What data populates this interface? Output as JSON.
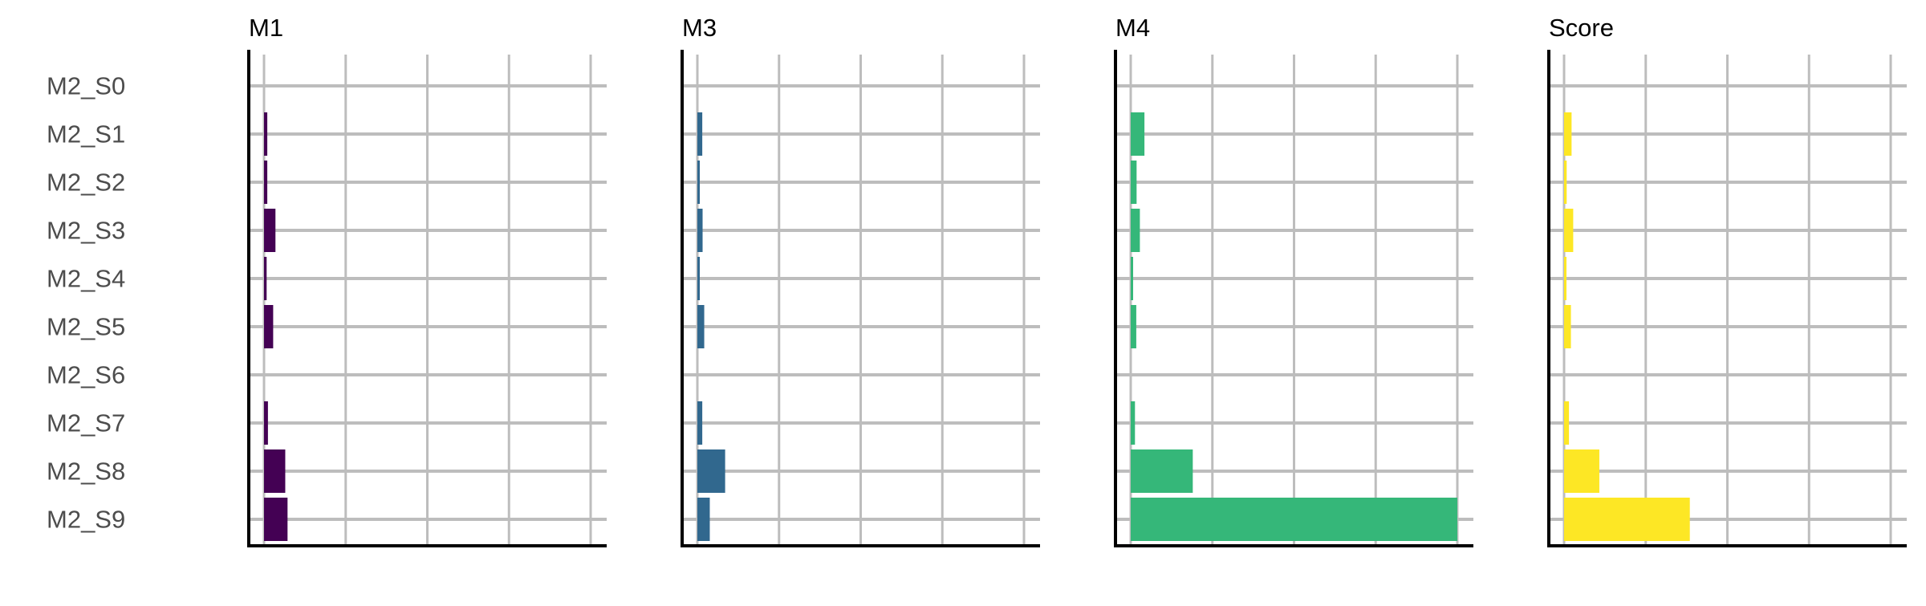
{
  "chart_data": {
    "type": "bar",
    "orientation": "horizontal",
    "layout": "small-multiples",
    "categories": [
      "M2_S0",
      "M2_S1",
      "M2_S2",
      "M2_S3",
      "M2_S4",
      "M2_S5",
      "M2_S6",
      "M2_S7",
      "M2_S8",
      "M2_S9"
    ],
    "grid": true,
    "legend": "none",
    "xlim": [
      0,
      1.1
    ],
    "panels": [
      {
        "title": "M1",
        "color": "#440154",
        "values": [
          0,
          0.01,
          0.01,
          0.035,
          0.008,
          0.028,
          0,
          0.012,
          0.065,
          0.072
        ]
      },
      {
        "title": "M3",
        "color": "#31688E",
        "values": [
          0,
          0.015,
          0.005,
          0.016,
          0.007,
          0.021,
          0,
          0.015,
          0.085,
          0.038
        ]
      },
      {
        "title": "M4",
        "color": "#35B779",
        "values": [
          0,
          0.042,
          0.018,
          0.028,
          0.006,
          0.017,
          0,
          0.013,
          0.19,
          1.0
        ]
      },
      {
        "title": "Score",
        "color": "#FDE725",
        "values": [
          0,
          0.023,
          0.008,
          0.028,
          0.006,
          0.021,
          0,
          0.015,
          0.108,
          0.385
        ]
      }
    ]
  }
}
